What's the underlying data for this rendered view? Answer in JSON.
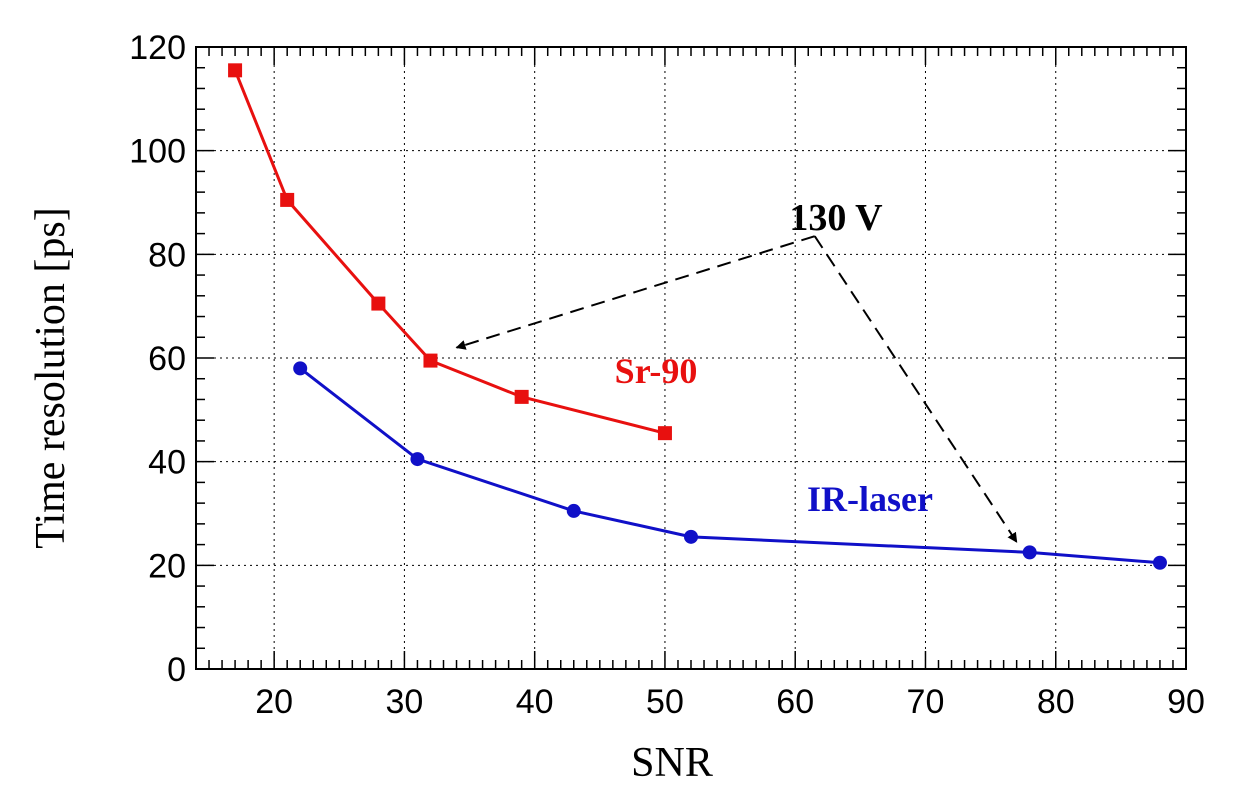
{
  "chart_data": {
    "type": "line",
    "title": "",
    "xlabel": "SNR",
    "ylabel": "Time resolution [ps]",
    "xlim": [
      14,
      90
    ],
    "ylim": [
      0,
      120
    ],
    "xticks": [
      20,
      30,
      40,
      50,
      60,
      70,
      80,
      90
    ],
    "yticks": [
      0,
      20,
      40,
      60,
      80,
      100,
      120
    ],
    "grid": true,
    "series": [
      {
        "name": "Sr-90",
        "color": "#e8100f",
        "marker": "square",
        "x": [
          17,
          21,
          28,
          32,
          39,
          50
        ],
        "y": [
          115.5,
          90.5,
          70.5,
          59.5,
          52.5,
          45.5
        ]
      },
      {
        "name": "IR-laser",
        "color": "#1010c8",
        "marker": "circle",
        "x": [
          22,
          31,
          43,
          52,
          78,
          88
        ],
        "y": [
          58,
          40.5,
          30.5,
          25.5,
          22.5,
          20.5
        ]
      }
    ],
    "annotations": [
      {
        "text": "130 V",
        "style": "dashed-arrows",
        "origin": {
          "x": 61.5,
          "y": 83.5
        },
        "targets": [
          {
            "x": 34,
            "y": 62
          },
          {
            "x": 77,
            "y": 24.5
          }
        ]
      }
    ]
  }
}
